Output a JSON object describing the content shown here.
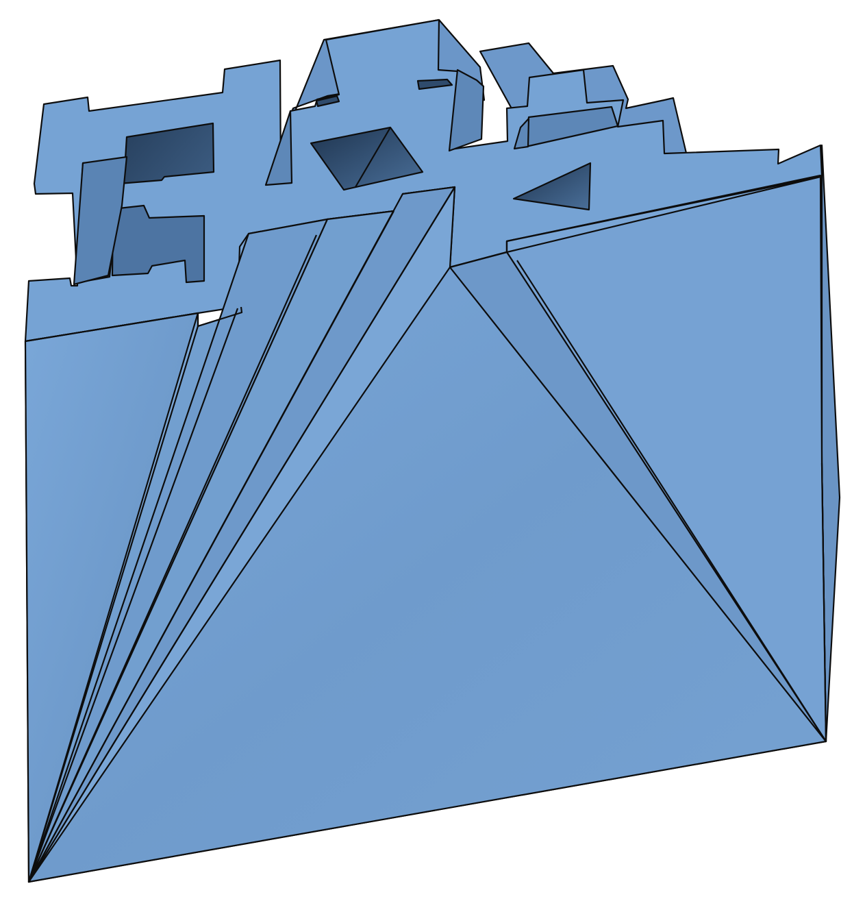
{
  "model": {
    "name": "",
    "colors": {
      "face": "#729fcf",
      "face_light": "#7aa6d6",
      "face_mid": "#6b96c8",
      "face_dark": "#5a84b4",
      "shadow": "#27425f",
      "edge": "#0d0d0d",
      "background": "#ffffff"
    }
  }
}
